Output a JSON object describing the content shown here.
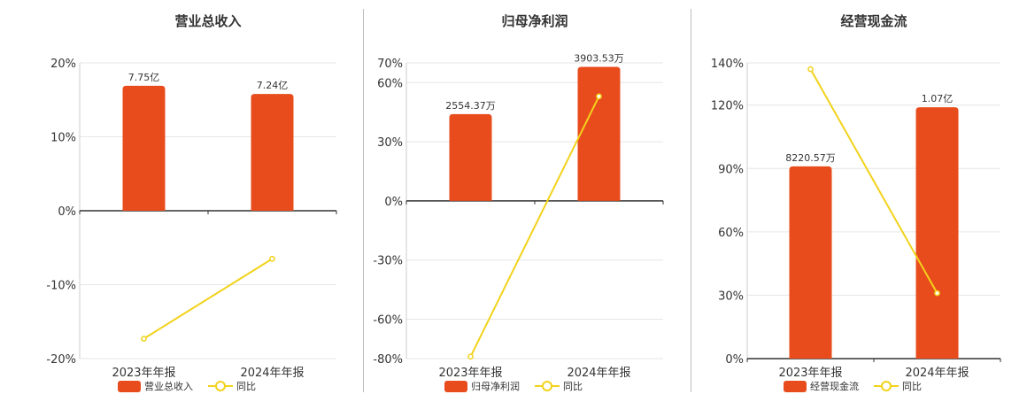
{
  "colors": {
    "bar": "#E84C1C",
    "line": "#F2D21A",
    "grid": "#e6e6e6",
    "axis": "#333333"
  },
  "chart_data": [
    {
      "type": "bar",
      "title": "营业总收入",
      "categories": [
        "2023年年报",
        "2024年年报"
      ],
      "ylim": [
        -20,
        20
      ],
      "yticks": [
        -20,
        -10,
        0,
        10,
        20
      ],
      "ytick_labels": [
        "-20%",
        "-10%",
        "0%",
        "10%",
        "20%"
      ],
      "bar_heights": [
        16.9,
        15.8
      ],
      "bar_labels": [
        "7.75亿",
        "7.24亿"
      ],
      "series": [
        {
          "name": "营业总收入",
          "type": "bar",
          "labels": [
            "7.75亿",
            "7.24亿"
          ]
        },
        {
          "name": "同比",
          "type": "line",
          "values": [
            -17.3,
            -6.5
          ]
        }
      ],
      "legend": [
        "营业总收入",
        "同比"
      ],
      "legend_position": "bottom"
    },
    {
      "type": "bar",
      "title": "归母净利润",
      "categories": [
        "2023年年报",
        "2024年年报"
      ],
      "ylim": [
        -80,
        70
      ],
      "yticks": [
        -80,
        -60,
        -30,
        0,
        30,
        60,
        70
      ],
      "ytick_labels": [
        "-80%",
        "-60%",
        "-30%",
        "0%",
        "30%",
        "60%",
        "70%"
      ],
      "bar_heights": [
        44.0,
        68.0
      ],
      "bar_labels": [
        "2554.37万",
        "3903.53万"
      ],
      "series": [
        {
          "name": "归母净利润",
          "type": "bar",
          "labels": [
            "2554.37万",
            "3903.53万"
          ]
        },
        {
          "name": "同比",
          "type": "line",
          "values": [
            -79.0,
            53.0
          ]
        }
      ],
      "legend": [
        "归母净利润",
        "同比"
      ],
      "legend_position": "bottom"
    },
    {
      "type": "bar",
      "title": "经营现金流",
      "categories": [
        "2023年年报",
        "2024年年报"
      ],
      "ylim": [
        0,
        140
      ],
      "yticks": [
        0,
        30,
        60,
        90,
        120,
        140
      ],
      "ytick_labels": [
        "0%",
        "30%",
        "60%",
        "90%",
        "120%",
        "140%"
      ],
      "bar_heights": [
        91.0,
        119.0
      ],
      "bar_labels": [
        "8220.57万",
        "1.07亿"
      ],
      "series": [
        {
          "name": "经营现金流",
          "type": "bar",
          "labels": [
            "8220.57万",
            "1.07亿"
          ]
        },
        {
          "name": "同比",
          "type": "line",
          "values": [
            137.0,
            31.0
          ]
        }
      ],
      "legend": [
        "经营现金流",
        "同比"
      ],
      "legend_position": "bottom"
    }
  ]
}
